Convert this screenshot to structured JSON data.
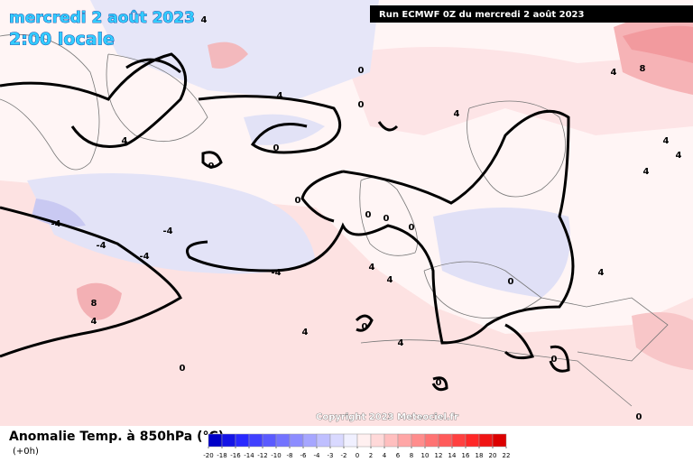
{
  "header": {
    "date": "mercredi 2 août 2023",
    "time": "2:00 locale",
    "run": "Run ECMWF 0Z du mercredi 2 août 2023"
  },
  "map": {
    "contour_labels": [
      "4",
      "0",
      "4",
      "8",
      "0",
      "4",
      "4",
      "4",
      "0",
      "0",
      "0",
      "0",
      "-4",
      "-4",
      "-4",
      "-4",
      "0",
      "0",
      "0",
      "8",
      "4",
      "4",
      "4",
      "0",
      "4",
      "0",
      "0",
      "0",
      "4",
      "4",
      "4",
      "0",
      "4",
      "-4",
      "4"
    ],
    "copyright": "Copyright 2023 Meteociel.fr"
  },
  "legend": {
    "title": "Anomalie Temp. à 850hPa (°C)",
    "step": "(+0h)",
    "scale": [
      -20,
      -18,
      -16,
      -14,
      -12,
      -10,
      -8,
      -6,
      -4,
      -3,
      -2,
      0,
      2,
      4,
      6,
      8,
      10,
      12,
      14,
      16,
      18,
      20,
      22
    ],
    "colors": [
      "#0000c8",
      "#1414e6",
      "#2828ff",
      "#4040ff",
      "#5a5aff",
      "#7373ff",
      "#8c8cff",
      "#a6a6ff",
      "#bfbfff",
      "#d9d9ff",
      "#f0f0ff",
      "#fff0f0",
      "#ffd9d9",
      "#ffbfbf",
      "#ffa6a6",
      "#ff8c8c",
      "#ff7373",
      "#ff5a5a",
      "#ff4040",
      "#ff2828",
      "#f01414",
      "#dc0000"
    ]
  }
}
